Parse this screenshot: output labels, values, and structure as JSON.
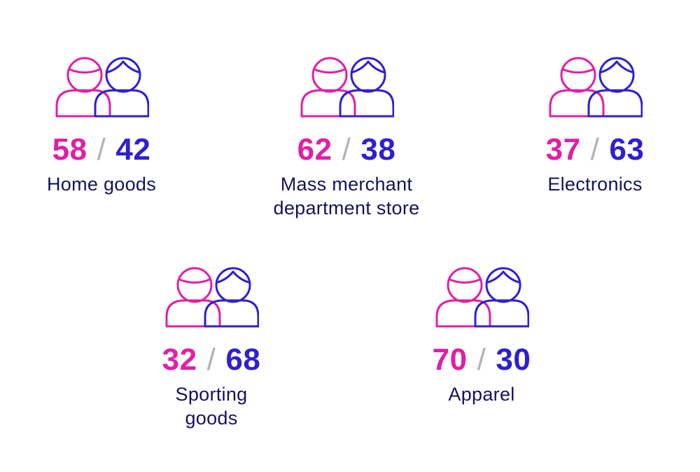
{
  "colors": {
    "female": "#e01fa5",
    "male": "#2f1fd1",
    "slash": "#b3b3b3",
    "label": "#14135b"
  },
  "icon_name": "two-people-icon",
  "categories": [
    {
      "id": "home-goods",
      "female": "58",
      "male": "42",
      "separator": "/",
      "label_lines": [
        "Home goods"
      ]
    },
    {
      "id": "mass-merchant",
      "female": "62",
      "male": "38",
      "separator": "/",
      "label_lines": [
        "Mass merchant",
        "department store"
      ]
    },
    {
      "id": "electronics",
      "female": "37",
      "male": "63",
      "separator": "/",
      "label_lines": [
        "Electronics"
      ]
    },
    {
      "id": "sporting-goods",
      "female": "32",
      "male": "68",
      "separator": "/",
      "label_lines": [
        "Sporting",
        "goods"
      ]
    },
    {
      "id": "apparel",
      "female": "70",
      "male": "30",
      "separator": "/",
      "label_lines": [
        "Apparel"
      ]
    }
  ]
}
